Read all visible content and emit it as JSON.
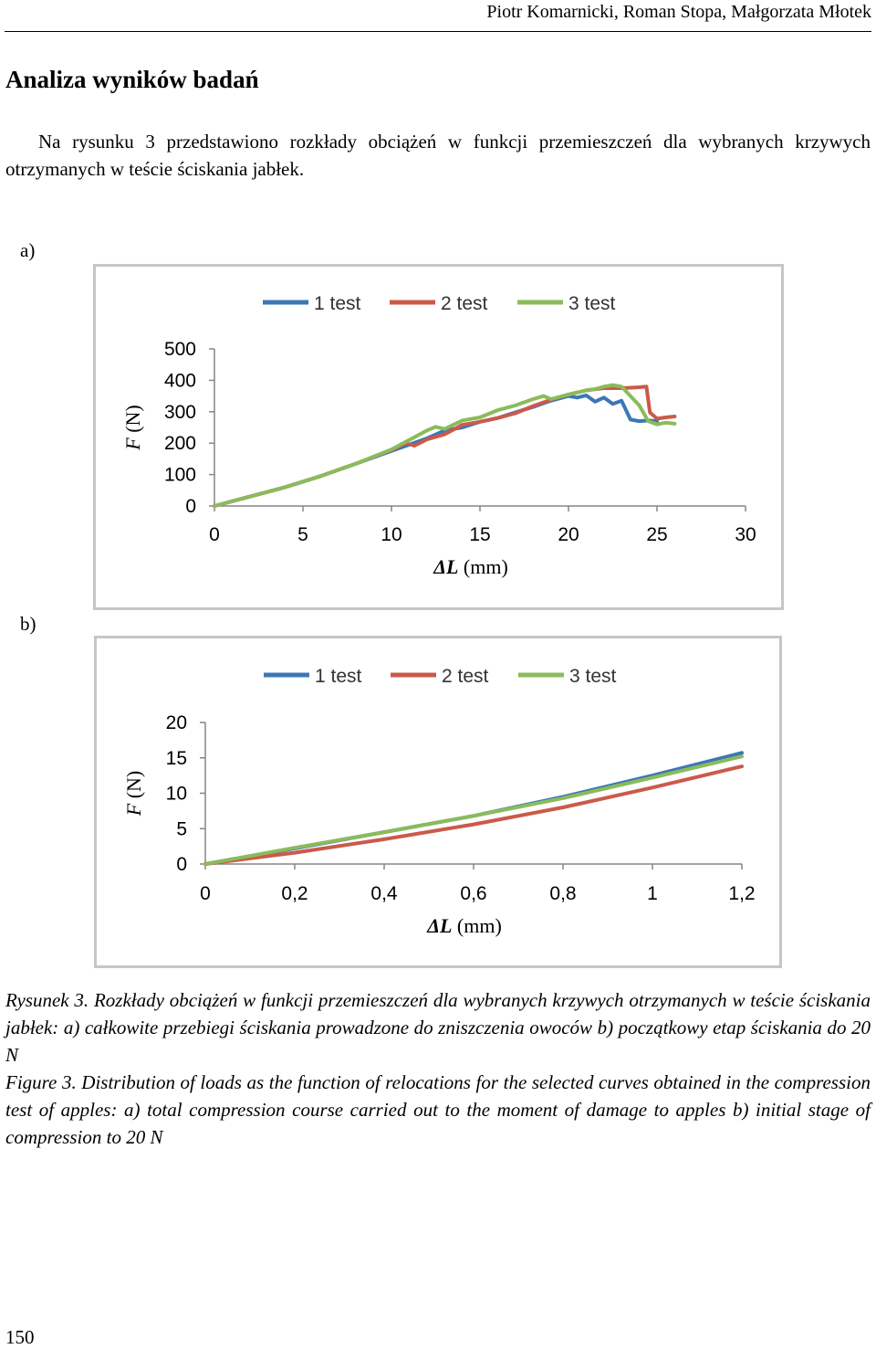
{
  "header": {
    "authors": "Piotr Komarnicki, Roman Stopa, Małgorzata Młotek"
  },
  "section": {
    "title": "Analiza wyników badań"
  },
  "paragraph": "Na rysunku 3 przedstawiono rozkłady obciążeń w funkcji przemieszczeń dla wybranych krzywych otrzymanych w teście ściskania jabłek.",
  "panels": {
    "a": "a)",
    "b": "b)"
  },
  "caption": {
    "pl_label": "Rysunek 3.",
    "pl_text": "Rozkłady obciążeń w funkcji przemieszczeń dla wybranych krzywych otrzymanych w teście ściskania jabłek: a) całkowite przebiegi ściskania prowadzone do zniszczenia owoców b) początkowy etap ściskania do 20 N",
    "en_label": "Figure 3.",
    "en_text": "Distribution of loads as the function of relocations for the selected curves obtained in the compression test of apples: a) total compression course carried out to the moment of damage to apples b) initial stage of compression to 20 N"
  },
  "page_number": "150",
  "chart_data": [
    {
      "type": "line",
      "panel": "a)",
      "xlabel_italic": "ΔL",
      "xlabel_unit": "(mm)",
      "ylabel_italic": "F",
      "ylabel_unit": "(N)",
      "xlim": [
        0,
        30
      ],
      "ylim": [
        0,
        500
      ],
      "x_ticks": [
        "0",
        "5",
        "10",
        "15",
        "20",
        "25",
        "30"
      ],
      "y_ticks": [
        "0",
        "100",
        "200",
        "300",
        "400",
        "500"
      ],
      "legend_position": "top",
      "series": [
        {
          "name": "1 test",
          "color": "#3c77b5",
          "x": [
            0,
            2,
            4,
            6,
            8,
            10,
            11,
            12,
            13,
            14,
            15,
            16,
            17,
            18,
            19,
            20,
            20.5,
            21,
            21.5,
            22,
            22.5,
            23,
            23.5,
            24,
            24.5,
            25
          ],
          "y": [
            0,
            30,
            60,
            95,
            135,
            175,
            195,
            215,
            240,
            250,
            268,
            280,
            298,
            315,
            335,
            350,
            345,
            352,
            332,
            345,
            325,
            335,
            275,
            270,
            272,
            270
          ]
        },
        {
          "name": "2 test",
          "color": "#cb5a4a",
          "x": [
            0,
            2,
            4,
            6,
            8,
            10,
            10.8,
            11.3,
            12,
            13,
            14,
            15,
            16,
            17,
            18,
            19,
            20,
            21,
            22,
            23,
            24,
            24.4,
            24.6,
            25,
            25.5,
            26
          ],
          "y": [
            0,
            30,
            60,
            95,
            135,
            178,
            200,
            192,
            212,
            228,
            258,
            268,
            280,
            295,
            318,
            338,
            355,
            368,
            375,
            375,
            378,
            380,
            298,
            278,
            282,
            285
          ]
        },
        {
          "name": "3 test",
          "color": "#8bbb5b",
          "x": [
            0,
            2,
            4,
            6,
            8,
            10,
            11,
            12,
            12.5,
            13,
            14,
            15,
            16,
            17,
            18,
            18.6,
            19,
            20,
            21,
            21.5,
            22,
            22.5,
            23,
            23.5,
            24,
            24.5,
            25,
            25.5,
            26
          ],
          "y": [
            0,
            30,
            60,
            95,
            135,
            180,
            210,
            240,
            252,
            245,
            272,
            282,
            305,
            320,
            340,
            350,
            340,
            355,
            368,
            372,
            380,
            385,
            380,
            350,
            320,
            270,
            260,
            265,
            262
          ]
        }
      ]
    },
    {
      "type": "line",
      "panel": "b)",
      "xlabel_italic": "ΔL",
      "xlabel_unit": "(mm)",
      "ylabel_italic": "F",
      "ylabel_unit": "(N)",
      "xlim": [
        0,
        1.2
      ],
      "ylim": [
        0,
        20
      ],
      "x_ticks": [
        "0",
        "0,2",
        "0,4",
        "0,6",
        "0,8",
        "1",
        "1,2"
      ],
      "y_ticks": [
        "0",
        "5",
        "10",
        "15",
        "20"
      ],
      "legend_position": "top",
      "series": [
        {
          "name": "1 test",
          "color": "#3c77b5",
          "x": [
            0,
            0.2,
            0.4,
            0.6,
            0.8,
            1.0,
            1.2
          ],
          "y": [
            0,
            2.2,
            4.5,
            6.8,
            9.5,
            12.5,
            15.7
          ]
        },
        {
          "name": "2 test",
          "color": "#cb5a4a",
          "x": [
            0,
            0.2,
            0.4,
            0.6,
            0.8,
            1.0,
            1.2
          ],
          "y": [
            0,
            1.6,
            3.5,
            5.6,
            8.0,
            10.8,
            13.8
          ]
        },
        {
          "name": "3 test",
          "color": "#8bbb5b",
          "x": [
            0,
            0.2,
            0.4,
            0.6,
            0.8,
            1.0,
            1.2
          ],
          "y": [
            0,
            2.3,
            4.5,
            6.8,
            9.3,
            12.2,
            15.2
          ]
        }
      ]
    }
  ]
}
